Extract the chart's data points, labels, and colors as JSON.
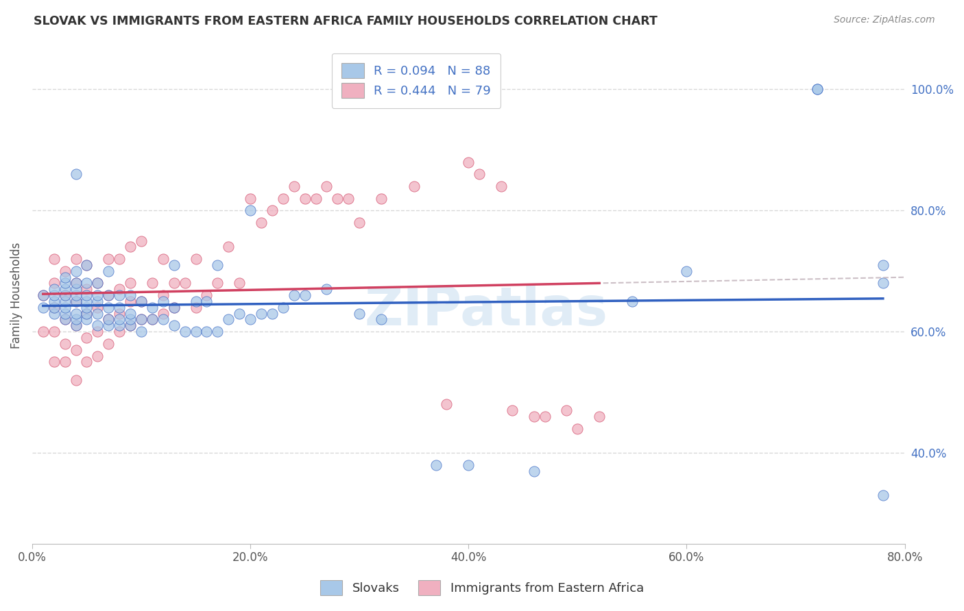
{
  "title": "SLOVAK VS IMMIGRANTS FROM EASTERN AFRICA FAMILY HOUSEHOLDS CORRELATION CHART",
  "source": "Source: ZipAtlas.com",
  "ylabel": "Family Households",
  "x_min": 0.0,
  "x_max": 0.8,
  "y_min": 0.25,
  "y_max": 1.07,
  "x_tick_labels": [
    "0.0%",
    "20.0%",
    "40.0%",
    "60.0%",
    "80.0%"
  ],
  "x_tick_vals": [
    0.0,
    0.2,
    0.4,
    0.6,
    0.8
  ],
  "y_tick_labels": [
    "40.0%",
    "60.0%",
    "80.0%",
    "100.0%"
  ],
  "y_tick_vals": [
    0.4,
    0.6,
    0.8,
    1.0
  ],
  "legend_label1": "Slovaks",
  "legend_label2": "Immigrants from Eastern Africa",
  "r1": 0.094,
  "n1": 88,
  "r2": 0.444,
  "n2": 79,
  "color_blue": "#a8c8e8",
  "color_pink": "#f0b0c0",
  "color_blue_line": "#3060c0",
  "color_pink_line": "#d04060",
  "color_gray_dashed": "#c0b0b8",
  "watermark": "ZIPatlas",
  "blue_scatter_x": [
    0.01,
    0.01,
    0.02,
    0.02,
    0.02,
    0.02,
    0.02,
    0.03,
    0.03,
    0.03,
    0.03,
    0.03,
    0.03,
    0.03,
    0.03,
    0.04,
    0.04,
    0.04,
    0.04,
    0.04,
    0.04,
    0.04,
    0.04,
    0.04,
    0.05,
    0.05,
    0.05,
    0.05,
    0.05,
    0.05,
    0.05,
    0.06,
    0.06,
    0.06,
    0.06,
    0.06,
    0.07,
    0.07,
    0.07,
    0.07,
    0.07,
    0.08,
    0.08,
    0.08,
    0.08,
    0.09,
    0.09,
    0.09,
    0.09,
    0.1,
    0.1,
    0.1,
    0.11,
    0.11,
    0.12,
    0.12,
    0.13,
    0.13,
    0.13,
    0.14,
    0.15,
    0.15,
    0.16,
    0.16,
    0.17,
    0.17,
    0.18,
    0.19,
    0.2,
    0.2,
    0.21,
    0.22,
    0.23,
    0.24,
    0.25,
    0.27,
    0.3,
    0.32,
    0.37,
    0.4,
    0.46,
    0.55,
    0.6,
    0.72,
    0.72,
    0.78,
    0.78,
    0.78
  ],
  "blue_scatter_y": [
    0.64,
    0.66,
    0.63,
    0.64,
    0.65,
    0.66,
    0.67,
    0.62,
    0.63,
    0.64,
    0.65,
    0.66,
    0.67,
    0.68,
    0.69,
    0.61,
    0.62,
    0.63,
    0.65,
    0.66,
    0.67,
    0.68,
    0.7,
    0.86,
    0.62,
    0.63,
    0.64,
    0.65,
    0.66,
    0.68,
    0.71,
    0.61,
    0.63,
    0.65,
    0.66,
    0.68,
    0.61,
    0.62,
    0.64,
    0.66,
    0.7,
    0.61,
    0.62,
    0.64,
    0.66,
    0.61,
    0.62,
    0.63,
    0.66,
    0.6,
    0.62,
    0.65,
    0.62,
    0.64,
    0.62,
    0.65,
    0.61,
    0.64,
    0.71,
    0.6,
    0.6,
    0.65,
    0.6,
    0.65,
    0.6,
    0.71,
    0.62,
    0.63,
    0.62,
    0.8,
    0.63,
    0.63,
    0.64,
    0.66,
    0.66,
    0.67,
    0.63,
    0.62,
    0.38,
    0.38,
    0.37,
    0.65,
    0.7,
    1.0,
    1.0,
    0.68,
    0.71,
    0.33
  ],
  "pink_scatter_x": [
    0.01,
    0.01,
    0.02,
    0.02,
    0.02,
    0.02,
    0.02,
    0.03,
    0.03,
    0.03,
    0.03,
    0.03,
    0.04,
    0.04,
    0.04,
    0.04,
    0.04,
    0.04,
    0.05,
    0.05,
    0.05,
    0.05,
    0.05,
    0.06,
    0.06,
    0.06,
    0.06,
    0.07,
    0.07,
    0.07,
    0.07,
    0.08,
    0.08,
    0.08,
    0.08,
    0.09,
    0.09,
    0.09,
    0.09,
    0.1,
    0.1,
    0.1,
    0.11,
    0.11,
    0.12,
    0.12,
    0.12,
    0.13,
    0.13,
    0.14,
    0.15,
    0.15,
    0.16,
    0.17,
    0.18,
    0.19,
    0.2,
    0.21,
    0.22,
    0.23,
    0.24,
    0.25,
    0.26,
    0.27,
    0.28,
    0.29,
    0.3,
    0.32,
    0.35,
    0.38,
    0.4,
    0.41,
    0.43,
    0.44,
    0.46,
    0.47,
    0.49,
    0.5,
    0.52
  ],
  "pink_scatter_y": [
    0.6,
    0.66,
    0.55,
    0.6,
    0.64,
    0.68,
    0.72,
    0.55,
    0.58,
    0.62,
    0.66,
    0.7,
    0.52,
    0.57,
    0.61,
    0.65,
    0.68,
    0.72,
    0.55,
    0.59,
    0.63,
    0.67,
    0.71,
    0.56,
    0.6,
    0.64,
    0.68,
    0.58,
    0.62,
    0.66,
    0.72,
    0.6,
    0.63,
    0.67,
    0.72,
    0.61,
    0.65,
    0.68,
    0.74,
    0.62,
    0.65,
    0.75,
    0.62,
    0.68,
    0.63,
    0.66,
    0.72,
    0.64,
    0.68,
    0.68,
    0.64,
    0.72,
    0.66,
    0.68,
    0.74,
    0.68,
    0.82,
    0.78,
    0.8,
    0.82,
    0.84,
    0.82,
    0.82,
    0.84,
    0.82,
    0.82,
    0.78,
    0.82,
    0.84,
    0.48,
    0.88,
    0.86,
    0.84,
    0.47,
    0.46,
    0.46,
    0.47,
    0.44,
    0.46
  ]
}
